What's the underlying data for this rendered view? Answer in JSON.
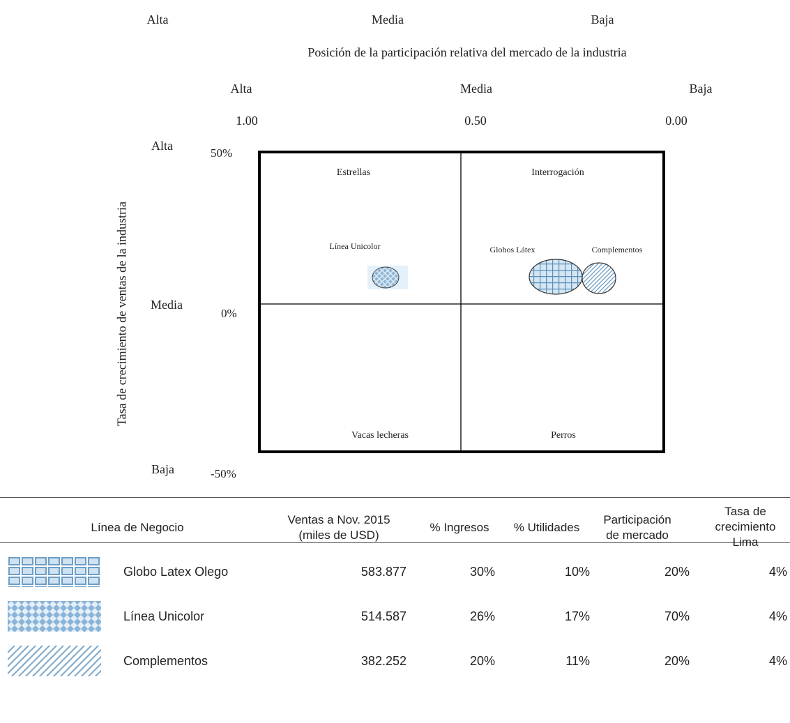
{
  "top_labels": [
    "Alta",
    "Media",
    "Baja"
  ],
  "chart_data": {
    "type": "scatter",
    "title": "Posición de la participación relativa del mercado de la industria",
    "x_level_labels": [
      "Alta",
      "Media",
      "Baja"
    ],
    "x_tick_labels": [
      "1.00",
      "0.50",
      "0.00"
    ],
    "xlim": [
      1.0,
      0.0
    ],
    "ylabel": "Tasa de crecimiento de ventas de la industria",
    "y_level_labels": [
      "Alta",
      "Media",
      "Baja"
    ],
    "y_tick_labels": [
      "50%",
      "0%",
      "-50%"
    ],
    "ylim": [
      -50,
      50
    ],
    "quadrants": [
      "Estrellas",
      "Interrogación",
      "Vacas lecheras",
      "Perros"
    ],
    "bubble_labels": [
      "Línea Unicolor",
      "Globos Látex",
      "Complementos"
    ],
    "points": [
      {
        "x": 0.62,
        "y": 10,
        "pattern": "crosshatch"
      },
      {
        "x": 0.3,
        "y": 10,
        "pattern": "grid"
      },
      {
        "x": 0.14,
        "y": 10,
        "pattern": "diagonal"
      }
    ]
  },
  "table": {
    "headers": [
      [
        "Línea de Negocio"
      ],
      [
        "Ventas a Nov. 2015",
        "(miles de USD)"
      ],
      [
        "% Ingresos"
      ],
      [
        "% Utilidades"
      ],
      [
        "Participación",
        "de mercado"
      ],
      [
        "Tasa de",
        "crecimiento",
        "Lima"
      ]
    ],
    "rows": [
      {
        "pattern": "grid",
        "name": "Globo Latex Olego",
        "ventas": "583.877",
        "ingresos": "30%",
        "utilidades": "10%",
        "participacion": "20%",
        "tasa": "4%"
      },
      {
        "pattern": "crosshatch",
        "name": "Línea Unicolor",
        "ventas": "514.587",
        "ingresos": "26%",
        "utilidades": "17%",
        "participacion": "70%",
        "tasa": "4%"
      },
      {
        "pattern": "diagonal",
        "name": "Complementos",
        "ventas": "382.252",
        "ingresos": "20%",
        "utilidades": "11%",
        "participacion": "20%",
        "tasa": "4%"
      }
    ]
  },
  "colors": {
    "pattern": "#5a8fb8",
    "fill": "#d5e6f3",
    "frame": "#000000"
  }
}
